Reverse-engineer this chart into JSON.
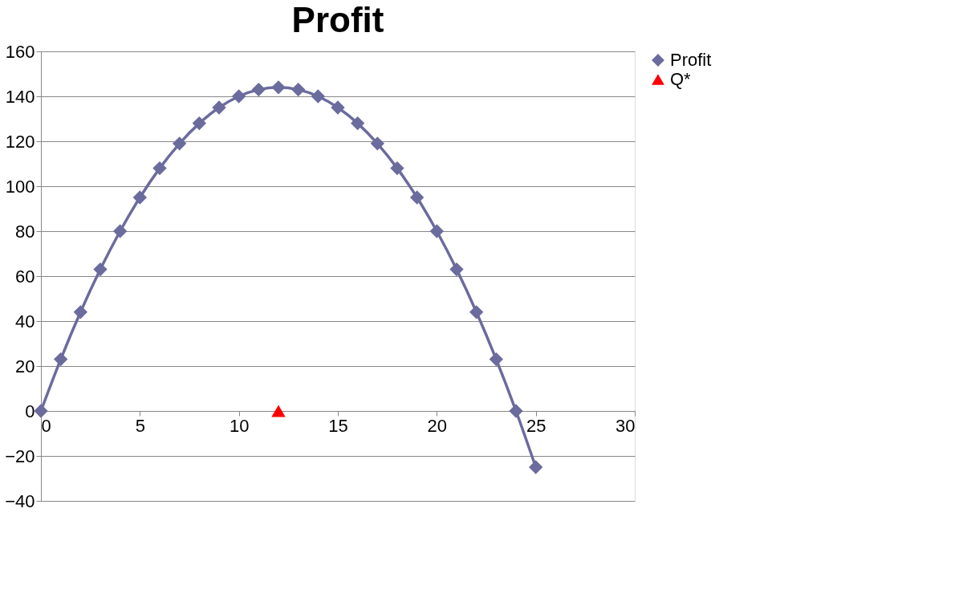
{
  "chart_data": {
    "type": "line",
    "title": "Profit",
    "xlim": [
      0,
      30
    ],
    "xticks": [
      0,
      5,
      10,
      15,
      20,
      25,
      30
    ],
    "ylim": [
      -40,
      160
    ],
    "yticks": [
      -40,
      -20,
      0,
      20,
      40,
      60,
      80,
      100,
      120,
      140,
      160
    ],
    "grid": "y",
    "legend": "right",
    "series": [
      {
        "name": "Profit",
        "marker": "diamond",
        "color": "#6b6b9e",
        "x": [
          0,
          1,
          2,
          3,
          4,
          5,
          6,
          7,
          8,
          9,
          10,
          11,
          12,
          13,
          14,
          15,
          16,
          17,
          18,
          19,
          20,
          21,
          22,
          23,
          24,
          25
        ],
        "values": [
          0,
          23,
          44,
          63,
          80,
          95,
          108,
          119,
          128,
          135,
          140,
          143,
          144,
          143,
          140,
          135,
          128,
          119,
          108,
          95,
          80,
          63,
          44,
          23,
          0,
          -25
        ]
      },
      {
        "name": "Q*",
        "marker": "triangle",
        "color": "#ff0000",
        "x": [
          12
        ],
        "values": [
          0
        ]
      }
    ]
  }
}
